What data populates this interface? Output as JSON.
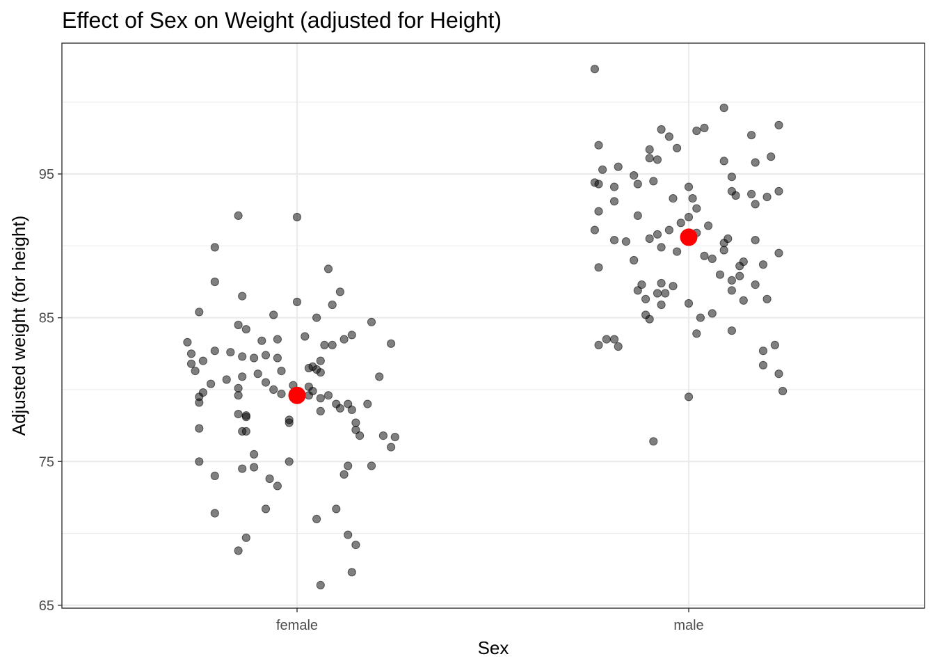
{
  "chart_data": {
    "type": "scatter",
    "title": "Effect of Sex on Weight (adjusted for Height)",
    "xlabel": "Sex",
    "ylabel": "Adjusted weight (for height)",
    "categories": [
      "female",
      "male"
    ],
    "ylim": [
      64.8,
      104.1
    ],
    "y_ticks": [
      65,
      75,
      85,
      95
    ],
    "y_tick_labels": [
      "65",
      "75",
      "85",
      "95"
    ],
    "grid": true,
    "legend": "none",
    "point_color": "#000000",
    "point_opacity": 0.5,
    "mean_color": "#ff0000",
    "series": [
      {
        "category": "female",
        "points": [
          {
            "jitter": -0.15,
            "y": 92.1
          },
          {
            "jitter": 0.0,
            "y": 92.0
          },
          {
            "jitter": -0.21,
            "y": 89.9
          },
          {
            "jitter": 0.08,
            "y": 88.4
          },
          {
            "jitter": -0.21,
            "y": 87.5
          },
          {
            "jitter": 0.11,
            "y": 86.8
          },
          {
            "jitter": -0.14,
            "y": 86.5
          },
          {
            "jitter": 0.0,
            "y": 86.1
          },
          {
            "jitter": 0.09,
            "y": 85.9
          },
          {
            "jitter": -0.25,
            "y": 85.4
          },
          {
            "jitter": -0.06,
            "y": 85.2
          },
          {
            "jitter": 0.05,
            "y": 85.0
          },
          {
            "jitter": 0.19,
            "y": 84.7
          },
          {
            "jitter": -0.15,
            "y": 84.5
          },
          {
            "jitter": -0.13,
            "y": 84.2
          },
          {
            "jitter": 0.14,
            "y": 83.8
          },
          {
            "jitter": 0.02,
            "y": 83.7
          },
          {
            "jitter": -0.05,
            "y": 83.5
          },
          {
            "jitter": 0.12,
            "y": 83.5
          },
          {
            "jitter": -0.09,
            "y": 83.4
          },
          {
            "jitter": -0.28,
            "y": 83.3
          },
          {
            "jitter": 0.24,
            "y": 83.2
          },
          {
            "jitter": 0.07,
            "y": 83.1
          },
          {
            "jitter": 0.09,
            "y": 83.1
          },
          {
            "jitter": -0.21,
            "y": 82.7
          },
          {
            "jitter": -0.17,
            "y": 82.6
          },
          {
            "jitter": -0.27,
            "y": 82.5
          },
          {
            "jitter": -0.08,
            "y": 82.4
          },
          {
            "jitter": -0.14,
            "y": 82.3
          },
          {
            "jitter": -0.11,
            "y": 82.2
          },
          {
            "jitter": -0.05,
            "y": 82.2
          },
          {
            "jitter": -0.24,
            "y": 82.0
          },
          {
            "jitter": 0.06,
            "y": 82.0
          },
          {
            "jitter": -0.27,
            "y": 81.8
          },
          {
            "jitter": 0.04,
            "y": 81.6
          },
          {
            "jitter": 0.03,
            "y": 81.5
          },
          {
            "jitter": 0.05,
            "y": 81.4
          },
          {
            "jitter": -0.04,
            "y": 81.3
          },
          {
            "jitter": -0.26,
            "y": 81.3
          },
          {
            "jitter": 0.06,
            "y": 81.2
          },
          {
            "jitter": -0.1,
            "y": 81.1
          },
          {
            "jitter": -0.14,
            "y": 80.9
          },
          {
            "jitter": 0.21,
            "y": 80.9
          },
          {
            "jitter": -0.18,
            "y": 80.7
          },
          {
            "jitter": -0.08,
            "y": 80.5
          },
          {
            "jitter": -0.22,
            "y": 80.4
          },
          {
            "jitter": -0.01,
            "y": 80.3
          },
          {
            "jitter": 0.03,
            "y": 80.2
          },
          {
            "jitter": -0.15,
            "y": 80.1
          },
          {
            "jitter": -0.06,
            "y": 80.0
          },
          {
            "jitter": 0.04,
            "y": 79.9
          },
          {
            "jitter": -0.24,
            "y": 79.8
          },
          {
            "jitter": -0.04,
            "y": 79.7
          },
          {
            "jitter": 0.03,
            "y": 79.6
          },
          {
            "jitter": 0.08,
            "y": 79.6
          },
          {
            "jitter": -0.15,
            "y": 79.6
          },
          {
            "jitter": -0.25,
            "y": 79.5
          },
          {
            "jitter": 0.06,
            "y": 79.4
          },
          {
            "jitter": -0.25,
            "y": 79.1
          },
          {
            "jitter": 0.1,
            "y": 79.0
          },
          {
            "jitter": 0.13,
            "y": 79.0
          },
          {
            "jitter": 0.18,
            "y": 79.0
          },
          {
            "jitter": 0.11,
            "y": 78.7
          },
          {
            "jitter": 0.14,
            "y": 78.6
          },
          {
            "jitter": 0.06,
            "y": 78.5
          },
          {
            "jitter": -0.15,
            "y": 78.3
          },
          {
            "jitter": -0.13,
            "y": 78.2
          },
          {
            "jitter": -0.13,
            "y": 78.1
          },
          {
            "jitter": -0.02,
            "y": 77.9
          },
          {
            "jitter": -0.02,
            "y": 77.7
          },
          {
            "jitter": 0.15,
            "y": 77.7
          },
          {
            "jitter": -0.25,
            "y": 77.3
          },
          {
            "jitter": 0.15,
            "y": 77.2
          },
          {
            "jitter": -0.13,
            "y": 77.1
          },
          {
            "jitter": -0.14,
            "y": 77.1
          },
          {
            "jitter": 0.16,
            "y": 76.8
          },
          {
            "jitter": 0.22,
            "y": 76.8
          },
          {
            "jitter": 0.25,
            "y": 76.7
          },
          {
            "jitter": 0.24,
            "y": 76.0
          },
          {
            "jitter": -0.11,
            "y": 75.5
          },
          {
            "jitter": -0.02,
            "y": 75.0
          },
          {
            "jitter": -0.25,
            "y": 75.0
          },
          {
            "jitter": 0.13,
            "y": 74.7
          },
          {
            "jitter": 0.19,
            "y": 74.7
          },
          {
            "jitter": -0.11,
            "y": 74.6
          },
          {
            "jitter": -0.14,
            "y": 74.5
          },
          {
            "jitter": 0.12,
            "y": 74.1
          },
          {
            "jitter": -0.21,
            "y": 74.0
          },
          {
            "jitter": -0.07,
            "y": 73.8
          },
          {
            "jitter": -0.05,
            "y": 73.3
          },
          {
            "jitter": 0.1,
            "y": 71.7
          },
          {
            "jitter": -0.08,
            "y": 71.7
          },
          {
            "jitter": -0.21,
            "y": 71.4
          },
          {
            "jitter": 0.05,
            "y": 71.0
          },
          {
            "jitter": 0.13,
            "y": 69.9
          },
          {
            "jitter": -0.13,
            "y": 69.7
          },
          {
            "jitter": 0.15,
            "y": 69.2
          },
          {
            "jitter": -0.15,
            "y": 68.8
          },
          {
            "jitter": 0.14,
            "y": 67.3
          },
          {
            "jitter": 0.06,
            "y": 66.4
          }
        ],
        "mean": 79.6
      },
      {
        "category": "male",
        "points": [
          {
            "jitter": -0.24,
            "y": 102.3
          },
          {
            "jitter": 0.09,
            "y": 99.6
          },
          {
            "jitter": 0.23,
            "y": 98.4
          },
          {
            "jitter": 0.04,
            "y": 98.2
          },
          {
            "jitter": -0.07,
            "y": 98.1
          },
          {
            "jitter": 0.02,
            "y": 98.0
          },
          {
            "jitter": 0.16,
            "y": 97.7
          },
          {
            "jitter": -0.05,
            "y": 97.6
          },
          {
            "jitter": -0.23,
            "y": 97.0
          },
          {
            "jitter": -0.03,
            "y": 96.8
          },
          {
            "jitter": -0.1,
            "y": 96.7
          },
          {
            "jitter": 0.21,
            "y": 96.2
          },
          {
            "jitter": -0.1,
            "y": 96.1
          },
          {
            "jitter": -0.08,
            "y": 96.0
          },
          {
            "jitter": 0.09,
            "y": 95.9
          },
          {
            "jitter": 0.17,
            "y": 95.8
          },
          {
            "jitter": -0.18,
            "y": 95.5
          },
          {
            "jitter": -0.22,
            "y": 95.3
          },
          {
            "jitter": -0.14,
            "y": 94.9
          },
          {
            "jitter": 0.11,
            "y": 94.8
          },
          {
            "jitter": -0.09,
            "y": 94.5
          },
          {
            "jitter": -0.24,
            "y": 94.4
          },
          {
            "jitter": -0.23,
            "y": 94.3
          },
          {
            "jitter": -0.13,
            "y": 94.3
          },
          {
            "jitter": -0.19,
            "y": 94.1
          },
          {
            "jitter": 0.0,
            "y": 94.1
          },
          {
            "jitter": 0.11,
            "y": 93.8
          },
          {
            "jitter": 0.23,
            "y": 93.8
          },
          {
            "jitter": 0.16,
            "y": 93.6
          },
          {
            "jitter": 0.12,
            "y": 93.5
          },
          {
            "jitter": 0.2,
            "y": 93.4
          },
          {
            "jitter": -0.04,
            "y": 93.3
          },
          {
            "jitter": 0.01,
            "y": 93.3
          },
          {
            "jitter": -0.19,
            "y": 93.1
          },
          {
            "jitter": 0.17,
            "y": 92.9
          },
          {
            "jitter": 0.02,
            "y": 92.6
          },
          {
            "jitter": -0.23,
            "y": 92.4
          },
          {
            "jitter": -0.13,
            "y": 92.1
          },
          {
            "jitter": 0.0,
            "y": 92.0
          },
          {
            "jitter": -0.02,
            "y": 91.6
          },
          {
            "jitter": 0.05,
            "y": 91.4
          },
          {
            "jitter": -0.24,
            "y": 91.1
          },
          {
            "jitter": -0.05,
            "y": 91.1
          },
          {
            "jitter": 0.02,
            "y": 90.9
          },
          {
            "jitter": -0.08,
            "y": 90.8
          },
          {
            "jitter": -0.1,
            "y": 90.5
          },
          {
            "jitter": 0.1,
            "y": 90.5
          },
          {
            "jitter": -0.19,
            "y": 90.4
          },
          {
            "jitter": 0.17,
            "y": 90.4
          },
          {
            "jitter": -0.16,
            "y": 90.3
          },
          {
            "jitter": 0.09,
            "y": 90.2
          },
          {
            "jitter": -0.07,
            "y": 89.9
          },
          {
            "jitter": 0.09,
            "y": 89.7
          },
          {
            "jitter": -0.03,
            "y": 89.6
          },
          {
            "jitter": 0.23,
            "y": 89.5
          },
          {
            "jitter": 0.04,
            "y": 89.3
          },
          {
            "jitter": 0.06,
            "y": 89.1
          },
          {
            "jitter": -0.14,
            "y": 89.0
          },
          {
            "jitter": 0.14,
            "y": 88.9
          },
          {
            "jitter": 0.19,
            "y": 88.7
          },
          {
            "jitter": 0.13,
            "y": 88.6
          },
          {
            "jitter": -0.23,
            "y": 88.5
          },
          {
            "jitter": 0.08,
            "y": 88.0
          },
          {
            "jitter": 0.13,
            "y": 87.9
          },
          {
            "jitter": 0.11,
            "y": 87.6
          },
          {
            "jitter": -0.07,
            "y": 87.4
          },
          {
            "jitter": -0.12,
            "y": 87.3
          },
          {
            "jitter": 0.17,
            "y": 87.3
          },
          {
            "jitter": -0.04,
            "y": 87.2
          },
          {
            "jitter": -0.13,
            "y": 86.9
          },
          {
            "jitter": 0.11,
            "y": 86.9
          },
          {
            "jitter": -0.06,
            "y": 86.7
          },
          {
            "jitter": -0.08,
            "y": 86.7
          },
          {
            "jitter": -0.11,
            "y": 86.3
          },
          {
            "jitter": 0.2,
            "y": 86.3
          },
          {
            "jitter": 0.14,
            "y": 86.2
          },
          {
            "jitter": 0.0,
            "y": 86.0
          },
          {
            "jitter": -0.07,
            "y": 85.9
          },
          {
            "jitter": 0.06,
            "y": 85.3
          },
          {
            "jitter": -0.11,
            "y": 85.2
          },
          {
            "jitter": 0.03,
            "y": 85.0
          },
          {
            "jitter": -0.1,
            "y": 84.9
          },
          {
            "jitter": 0.11,
            "y": 84.1
          },
          {
            "jitter": 0.02,
            "y": 83.9
          },
          {
            "jitter": -0.21,
            "y": 83.5
          },
          {
            "jitter": -0.19,
            "y": 83.5
          },
          {
            "jitter": -0.23,
            "y": 83.1
          },
          {
            "jitter": -0.18,
            "y": 83.0
          },
          {
            "jitter": 0.22,
            "y": 83.1
          },
          {
            "jitter": 0.19,
            "y": 82.7
          },
          {
            "jitter": 0.19,
            "y": 81.7
          },
          {
            "jitter": 0.23,
            "y": 81.1
          },
          {
            "jitter": 0.24,
            "y": 79.9
          },
          {
            "jitter": 0.0,
            "y": 79.5
          },
          {
            "jitter": -0.09,
            "y": 76.4
          }
        ],
        "mean": 90.6
      }
    ]
  }
}
